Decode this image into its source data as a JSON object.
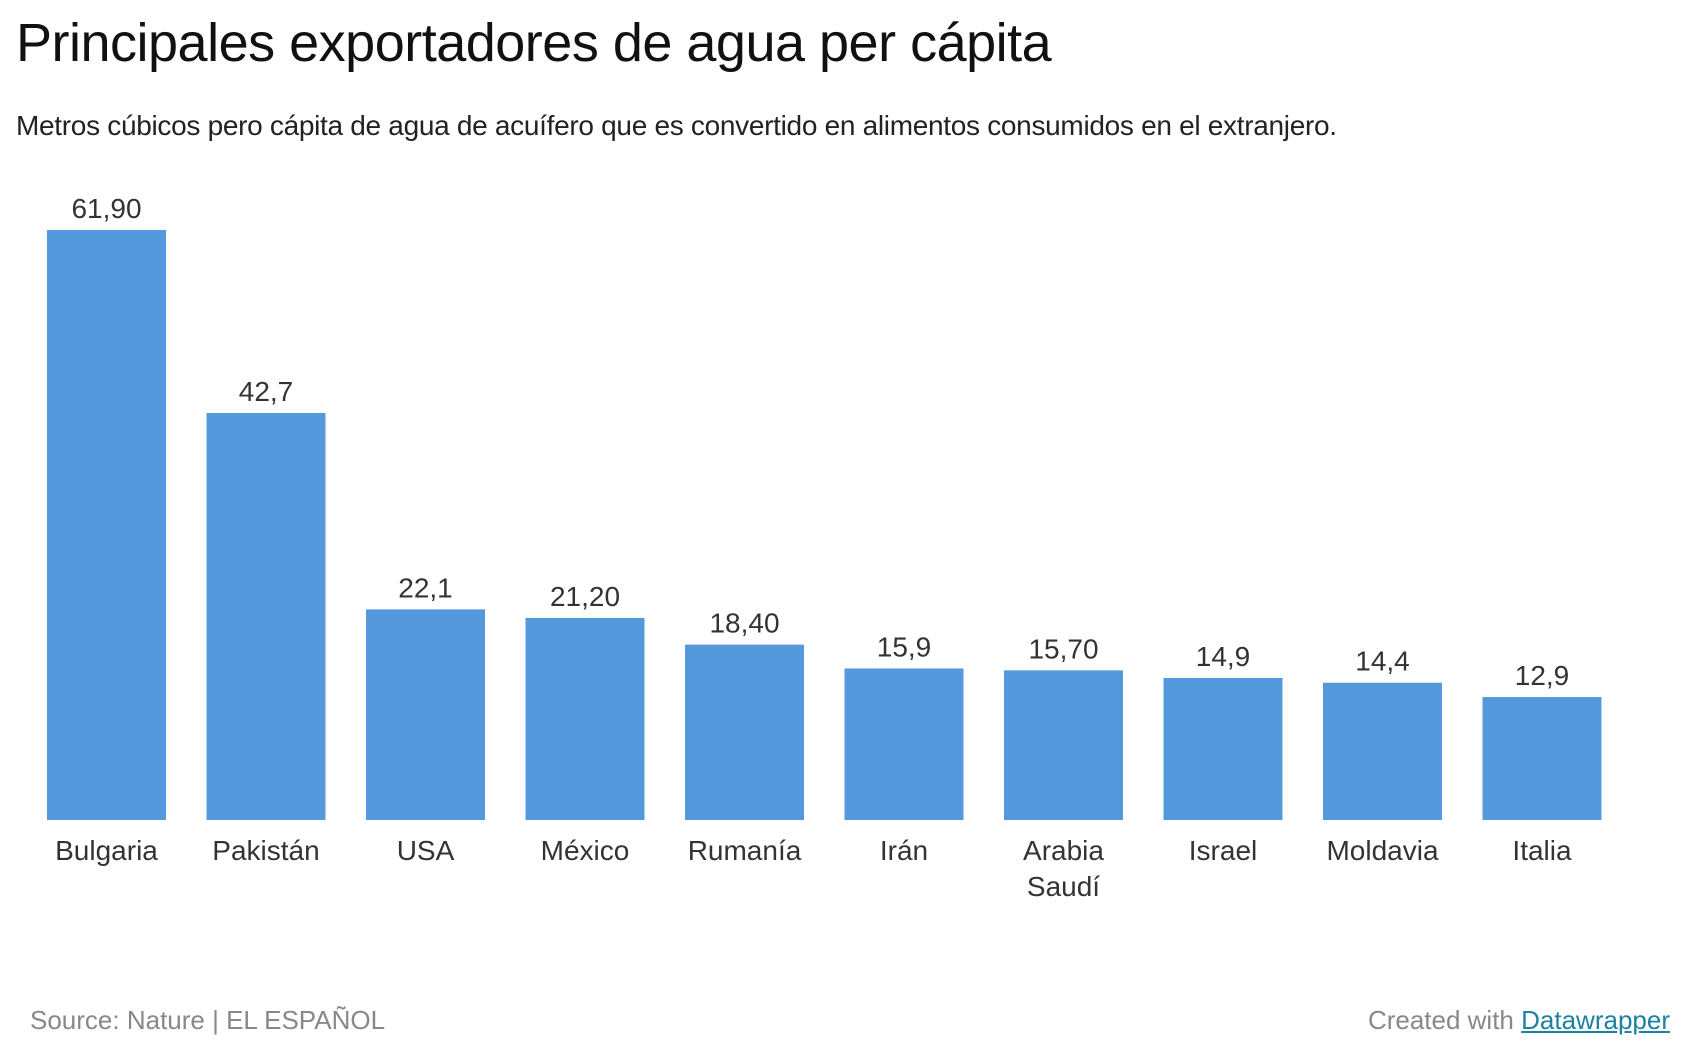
{
  "header": {
    "title": "Principales exportadores de agua per cápita",
    "subtitle": "Metros cúbicos pero cápita de agua de acuífero que es convertido en alimentos consumidos en el extranjero."
  },
  "footer": {
    "source": "Source: Nature | EL ESPAÑOL",
    "created_with": "Created with",
    "link_label": "Datawrapper"
  },
  "colors": {
    "bar": "#5599dd",
    "value_label": "#333333",
    "category_label": "#333333"
  },
  "chart_data": {
    "type": "bar",
    "title": "Principales exportadores de agua per cápita",
    "subtitle": "Metros cúbicos pero cápita de agua de acuífero que es convertido en alimentos consumidos en el extranjero.",
    "xlabel": "",
    "ylabel": "",
    "categories": [
      [
        "Bulgaria"
      ],
      [
        "Pakistán"
      ],
      [
        "USA"
      ],
      [
        "México"
      ],
      [
        "Rumanía"
      ],
      [
        "Irán"
      ],
      [
        "Arabia",
        "Saudí"
      ],
      [
        "Israel"
      ],
      [
        "Moldavia"
      ],
      [
        "Italia"
      ]
    ],
    "values": [
      61.9,
      42.7,
      22.1,
      21.2,
      18.4,
      15.9,
      15.7,
      14.9,
      14.4,
      12.9
    ],
    "value_labels": [
      "61,90",
      "42,7",
      "22,1",
      "21,20",
      "18,40",
      "15,9",
      "15,70",
      "14,9",
      "14,4",
      "12,9"
    ],
    "ylim": [
      0,
      61.9
    ],
    "grid": false,
    "legend": "none"
  }
}
